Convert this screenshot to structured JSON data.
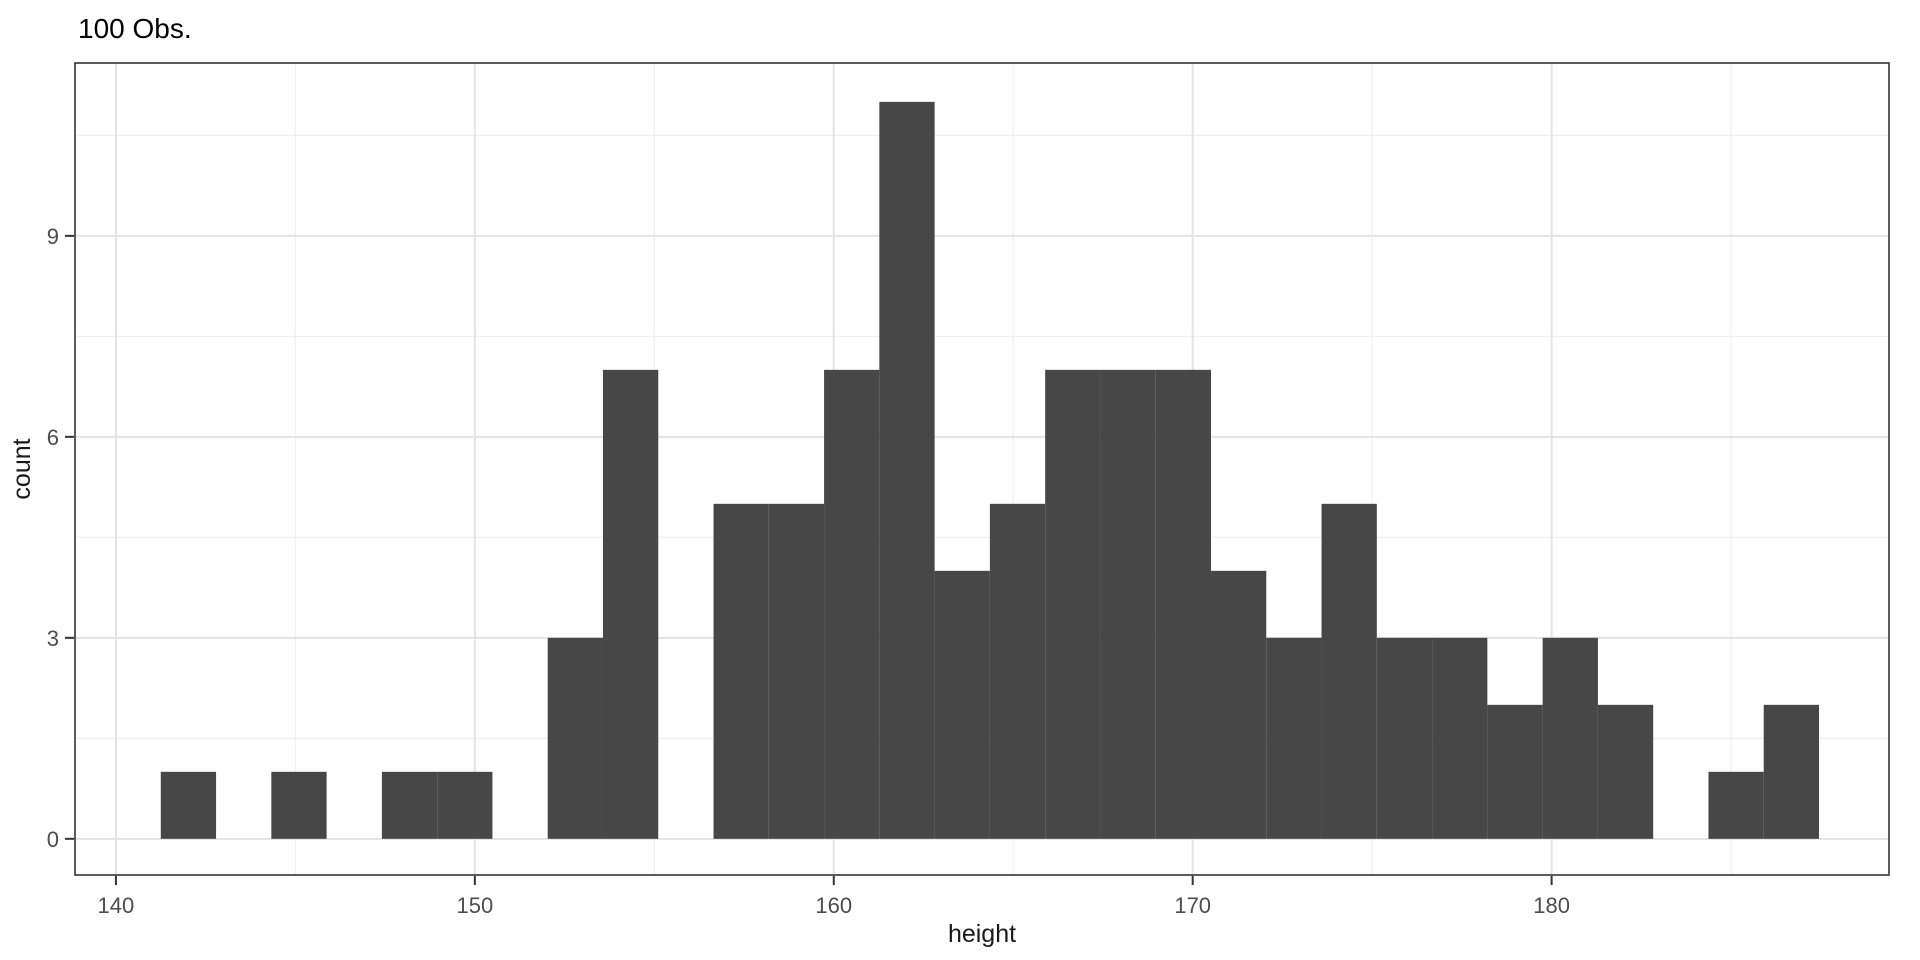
{
  "chart_data": {
    "type": "bar",
    "subtype": "histogram",
    "title": "100 Obs.",
    "xlabel": "height",
    "ylabel": "count",
    "n_obs_total": 100,
    "bin_start": 141.25,
    "bin_width": 1.54,
    "counts": [
      1,
      0,
      1,
      0,
      1,
      1,
      0,
      3,
      7,
      0,
      5,
      5,
      7,
      11,
      4,
      5,
      7,
      7,
      7,
      4,
      3,
      5,
      3,
      3,
      2,
      3,
      2,
      0,
      1,
      2
    ],
    "x_ticks": [
      140,
      150,
      160,
      170,
      180
    ],
    "x_minor_ticks": [
      145,
      155,
      165,
      175,
      185
    ],
    "y_ticks": [
      0,
      3,
      6,
      9
    ],
    "y_minor_ticks": [
      1.5,
      4.5,
      7.5,
      10.5
    ],
    "xlim": [
      138.86,
      189.4
    ],
    "ylim": [
      -0.54,
      11.58
    ],
    "grid": "on",
    "legend": "none",
    "colors": {
      "bar": "#474747",
      "grid_major": "#e3e3e3",
      "grid_minor": "#f0f0f0",
      "panel_border": "#333333",
      "tick_mark": "#333333",
      "tick_label": "#4d4d4d",
      "axis_label": "#1a1a1a",
      "title": "#000000",
      "background": "#ffffff"
    }
  }
}
